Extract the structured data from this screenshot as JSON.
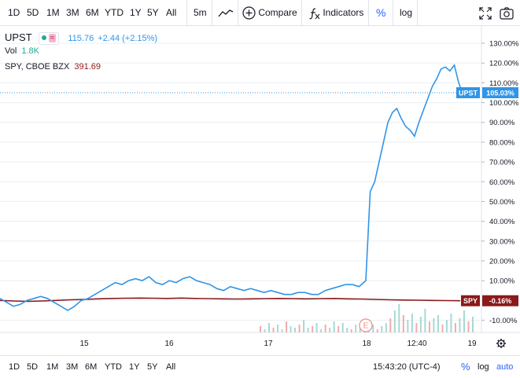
{
  "toolbar": {
    "ranges": [
      "1D",
      "5D",
      "1M",
      "3M",
      "6M",
      "YTD",
      "1Y",
      "5Y",
      "All"
    ],
    "interval": "5m",
    "compare_label": "Compare",
    "indicators_label": "Indicators",
    "percent_label": "%",
    "log_label": "log",
    "icons": [
      "line-style-icon",
      "compare-plus-icon",
      "indicators-fx-icon",
      "fullscreen-icon",
      "screenshot-camera-icon"
    ]
  },
  "legend": {
    "symbol": "UPST",
    "price": "115.76",
    "change": "+2.44 (+2.15%)",
    "vol_label": "Vol",
    "vol_value": "1.8K",
    "compare_symbol": "SPY, CBOE BZX",
    "compare_value": "391.69"
  },
  "price_axis": {
    "ticks": [
      "130.00%",
      "120.00%",
      "110.00%",
      "100.00%",
      "90.00%",
      "80.00%",
      "70.00%",
      "60.00%",
      "50.00%",
      "40.00%",
      "30.00%",
      "20.00%",
      "10.00%",
      "0.00%",
      "-10.00%"
    ],
    "upst_badge_symbol": "UPST",
    "upst_badge_value": "105.03%",
    "spy_badge_symbol": "SPY",
    "spy_badge_value": "-0.16%"
  },
  "time_axis": {
    "labels": [
      "15",
      "16",
      "17",
      "18",
      "12:40",
      "19"
    ],
    "earnings_marker": "E"
  },
  "chart_data": {
    "type": "line",
    "ylabel": "",
    "xlabel": "",
    "ylim": [
      -13,
      134
    ],
    "series": [
      {
        "name": "UPST",
        "color": "#2f95e8",
        "values": [
          1,
          -1,
          -3,
          -2,
          0,
          1,
          2,
          1,
          -1,
          -3,
          -5,
          -3,
          0,
          1,
          3,
          5,
          7,
          9,
          8,
          10,
          11,
          10,
          12,
          9,
          8,
          10,
          9,
          11,
          12,
          10,
          9,
          8,
          6,
          5,
          7,
          6,
          5,
          6,
          5,
          4,
          5,
          4,
          3,
          3,
          4,
          4,
          3,
          3,
          5,
          6,
          7,
          8,
          8,
          7,
          10,
          55,
          60,
          70,
          80,
          90,
          95,
          97,
          92,
          88,
          86,
          83,
          90,
          96,
          102,
          108,
          112,
          117,
          118,
          116,
          119,
          110,
          104,
          103,
          105
        ]
      },
      {
        "name": "SPY",
        "color": "#8b1a1a",
        "values": [
          0,
          -0.3,
          -0.5,
          -0.3,
          0,
          0.3,
          0.5,
          0.8,
          1,
          1.1,
          1.2,
          1.1,
          1,
          1.2,
          1,
          0.9,
          0.8,
          0.7,
          0.8,
          0.9,
          1,
          0.9,
          0.8,
          0.9,
          1,
          0.8,
          0.7,
          0.5,
          0.3,
          0.2,
          0.1,
          0,
          -0.1,
          -0.16
        ]
      }
    ],
    "volume": [
      4,
      2,
      6,
      3,
      5,
      2,
      7,
      4,
      3,
      5,
      8,
      3,
      4,
      6,
      2,
      5,
      3,
      7,
      4,
      6,
      3,
      2,
      5,
      4,
      6,
      3,
      5,
      2,
      4,
      6,
      9,
      14,
      18,
      11,
      8,
      12,
      6,
      10,
      15,
      7,
      9,
      11,
      5,
      8,
      12,
      6,
      9,
      14,
      7,
      10
    ]
  },
  "bottom": {
    "ranges": [
      "1D",
      "5D",
      "1M",
      "3M",
      "6M",
      "YTD",
      "1Y",
      "5Y",
      "All"
    ],
    "time": "15:43:20 (UTC-4)",
    "percent_label": "%",
    "log_label": "log",
    "auto_label": "auto"
  },
  "colors": {
    "upst": "#2f95e8",
    "spy": "#8b1a1a",
    "accent": "#2962ff",
    "grid": "#eceff2"
  }
}
